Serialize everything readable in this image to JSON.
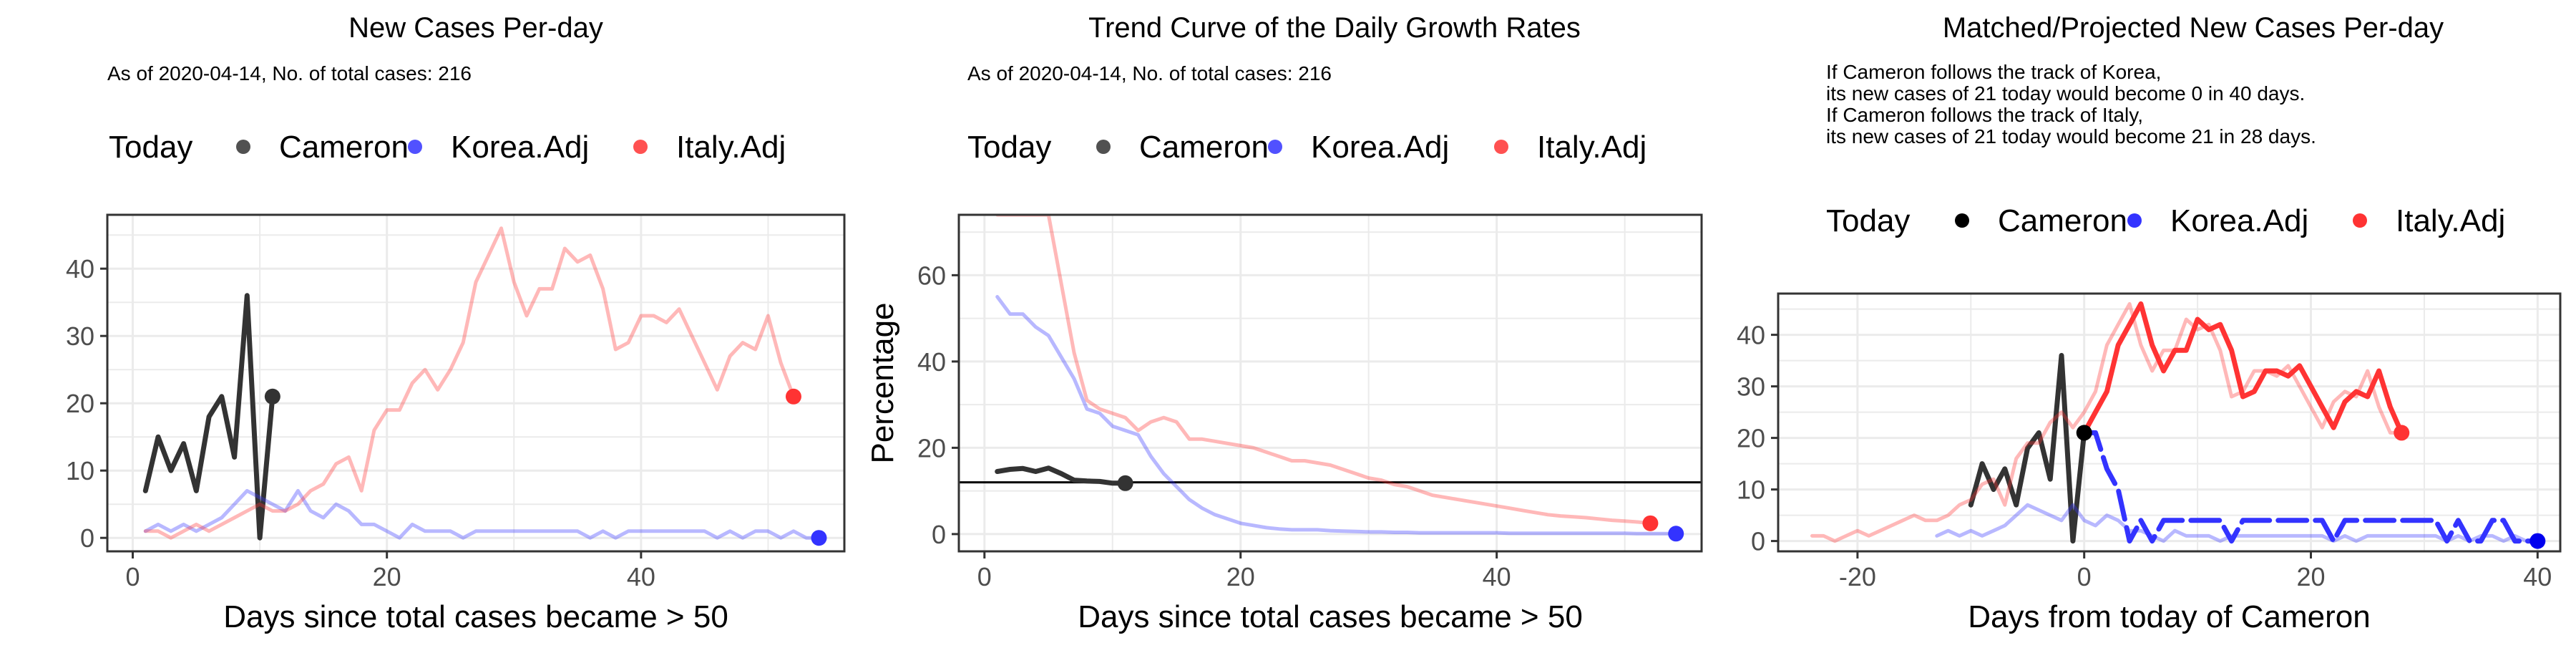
{
  "colors": {
    "today": "#000000",
    "cameron": "#333333",
    "korea": "#3333ff",
    "italy": "#ff3333",
    "grid": "#ebebeb"
  },
  "chart_data": [
    {
      "type": "line",
      "title": "New Cases Per-day",
      "subtitle": [
        "As of 2020-04-14, No. of total cases: 216"
      ],
      "xlabel": "Days since total cases became > 50",
      "ylabel": "",
      "xlim": [
        -2,
        56
      ],
      "ylim": [
        -2,
        48
      ],
      "xticks": [
        0,
        20,
        40
      ],
      "yticks": [
        0,
        10,
        20,
        30,
        40
      ],
      "legend": {
        "placement": "top",
        "entries": [
          "Today",
          "Cameron",
          "Korea.Adj",
          "Italy.Adj"
        ]
      },
      "grid": true,
      "series": [
        {
          "name": "Cameron",
          "x": [
            1,
            2,
            3,
            4,
            5,
            6,
            7,
            8,
            9,
            10,
            11
          ],
          "y": [
            7,
            15,
            10,
            14,
            7,
            18,
            21,
            12,
            36,
            0,
            21
          ]
        },
        {
          "name": "Korea.Adj",
          "x": [
            1,
            2,
            3,
            4,
            5,
            6,
            7,
            8,
            9,
            10,
            11,
            12,
            13,
            14,
            15,
            16,
            17,
            18,
            19,
            20,
            21,
            22,
            23,
            24,
            25,
            26,
            27,
            28,
            29,
            30,
            31,
            32,
            33,
            34,
            35,
            36,
            37,
            38,
            39,
            40,
            41,
            42,
            43,
            44,
            45,
            46,
            47,
            48,
            49,
            50,
            51,
            52,
            53,
            54
          ],
          "y": [
            1,
            2,
            1,
            2,
            1,
            2,
            3,
            5,
            7,
            6,
            5,
            4,
            7,
            4,
            3,
            5,
            4,
            2,
            2,
            1,
            0,
            2,
            1,
            1,
            1,
            0,
            1,
            1,
            1,
            1,
            1,
            1,
            1,
            1,
            1,
            0,
            1,
            0,
            1,
            1,
            1,
            1,
            1,
            1,
            1,
            0,
            1,
            0,
            1,
            1,
            0,
            1,
            0,
            0
          ]
        },
        {
          "name": "Italy.Adj",
          "x": [
            1,
            2,
            3,
            4,
            5,
            6,
            7,
            8,
            9,
            10,
            11,
            12,
            13,
            14,
            15,
            16,
            17,
            18,
            19,
            20,
            21,
            22,
            23,
            24,
            25,
            26,
            27,
            28,
            29,
            30,
            31,
            32,
            33,
            34,
            35,
            36,
            37,
            38,
            39,
            40,
            41,
            42,
            43,
            44,
            45,
            46,
            47,
            48,
            49,
            50,
            51,
            52
          ],
          "y": [
            1,
            1,
            0,
            1,
            2,
            1,
            2,
            3,
            4,
            5,
            4,
            4,
            5,
            7,
            8,
            11,
            12,
            7,
            16,
            19,
            19,
            23,
            25,
            22,
            25,
            29,
            38,
            42,
            46,
            38,
            33,
            37,
            37,
            43,
            41,
            42,
            37,
            28,
            29,
            33,
            33,
            32,
            34,
            30,
            26,
            22,
            27,
            29,
            28,
            33,
            26,
            21
          ]
        }
      ],
      "today_points": [
        {
          "series": "Cameron",
          "x": 11,
          "y": 21
        },
        {
          "series": "Korea.Adj",
          "x": 54,
          "y": 0
        },
        {
          "series": "Italy.Adj",
          "x": 52,
          "y": 21
        }
      ]
    },
    {
      "type": "line",
      "title": "Trend Curve of the Daily Growth Rates",
      "subtitle": [
        "As of 2020-04-14, No. of total cases: 216"
      ],
      "xlabel": "Days since total cases became > 50",
      "ylabel": "Percentage",
      "xlim": [
        -2,
        56
      ],
      "ylim": [
        -4,
        74
      ],
      "xticks": [
        0,
        20,
        40
      ],
      "yticks": [
        0,
        20,
        40,
        60
      ],
      "hline": 12,
      "legend": {
        "placement": "top",
        "entries": [
          "Today",
          "Cameron",
          "Korea.Adj",
          "Italy.Adj"
        ]
      },
      "grid": true,
      "series": [
        {
          "name": "Cameron",
          "x": [
            1,
            2,
            3,
            4,
            5,
            6,
            7,
            8,
            9,
            10,
            11
          ],
          "y": [
            14.5,
            15,
            15.2,
            14.5,
            15.3,
            14,
            12.5,
            12.3,
            12.2,
            11.8,
            11.8
          ]
        },
        {
          "name": "Korea.Adj",
          "x": [
            1,
            2,
            3,
            4,
            5,
            6,
            7,
            8,
            9,
            10,
            11,
            12,
            13,
            14,
            15,
            16,
            17,
            18,
            19,
            20,
            21,
            22,
            23,
            24,
            25,
            26,
            27,
            28,
            29,
            30,
            31,
            32,
            33,
            34,
            35,
            36,
            37,
            38,
            39,
            40,
            41,
            42,
            43,
            44,
            45,
            46,
            47,
            48,
            49,
            50,
            51,
            52,
            53,
            54
          ],
          "y": [
            55,
            51,
            51,
            48,
            46,
            41,
            36,
            29,
            28,
            25,
            24,
            23,
            18,
            14,
            11,
            8,
            6,
            4.5,
            3.5,
            2.5,
            2,
            1.5,
            1.2,
            1,
            1,
            1,
            0.8,
            0.7,
            0.6,
            0.5,
            0.5,
            0.4,
            0.4,
            0.3,
            0.3,
            0.3,
            0.3,
            0.3,
            0.3,
            0.3,
            0.2,
            0.2,
            0.2,
            0.2,
            0.2,
            0.2,
            0.2,
            0.2,
            0.2,
            0.2,
            0.1,
            0.1,
            0.1,
            0.1
          ]
        },
        {
          "name": "Italy.Adj",
          "x": [
            1,
            2,
            3,
            4,
            5,
            6,
            7,
            8,
            9,
            10,
            11,
            12,
            13,
            14,
            15,
            16,
            17,
            18,
            19,
            20,
            21,
            22,
            23,
            24,
            25,
            26,
            27,
            28,
            29,
            30,
            31,
            32,
            33,
            34,
            35,
            36,
            37,
            38,
            39,
            40,
            41,
            42,
            43,
            44,
            45,
            46,
            47,
            48,
            49,
            50,
            51,
            52
          ],
          "y": [
            74,
            74,
            74,
            74,
            74,
            58,
            42,
            31,
            29,
            28,
            27,
            24,
            26,
            27,
            26,
            22,
            22,
            21.5,
            21,
            20.5,
            20,
            19,
            18,
            17,
            17,
            16.5,
            16,
            15,
            14,
            13,
            12.5,
            11.5,
            11,
            10,
            9,
            8.5,
            8,
            7.5,
            7,
            6.5,
            6,
            5.5,
            5,
            4.5,
            4.2,
            4,
            3.8,
            3.5,
            3.2,
            3,
            2.8,
            2.5
          ]
        }
      ],
      "today_points": [
        {
          "series": "Cameron",
          "x": 11,
          "y": 11.8
        },
        {
          "series": "Korea.Adj",
          "x": 54,
          "y": 0.1
        },
        {
          "series": "Italy.Adj",
          "x": 52,
          "y": 2.5
        }
      ]
    },
    {
      "type": "line",
      "title": "Matched/Projected New Cases Per-day",
      "subtitle": [
        "If Cameron follows the track of Korea,",
        "its new cases of 21 today would become 0 in 40 days.",
        "If Cameron follows the track of Italy,",
        "its new cases of 21 today would become 21 in 28 days."
      ],
      "xlabel": "Days from today of Cameron",
      "ylabel": "",
      "xlim": [
        -27,
        42
      ],
      "ylim": [
        -2,
        48
      ],
      "xticks": [
        -20,
        0,
        20,
        40
      ],
      "yticks": [
        0,
        10,
        20,
        30,
        40
      ],
      "legend": {
        "placement": "top",
        "entries": [
          "Today",
          "Cameron",
          "Korea.Adj",
          "Italy.Adj"
        ]
      },
      "grid": true,
      "series": [
        {
          "name": "Cameron",
          "x": [
            -10,
            -9,
            -8,
            -7,
            -6,
            -5,
            -4,
            -3,
            -2,
            -1,
            0
          ],
          "y": [
            7,
            15,
            10,
            14,
            7,
            18,
            21,
            12,
            36,
            0,
            21
          ]
        },
        {
          "name": "Korea.Adj (matched)",
          "x": [
            -13,
            -12,
            -11,
            -10,
            -9,
            -8,
            -7,
            -6,
            -5,
            -4,
            -3,
            -2,
            -1,
            0,
            1,
            2,
            3,
            4,
            5,
            6,
            7,
            8,
            9,
            10,
            11,
            12,
            13,
            14,
            15,
            16,
            17,
            18,
            19,
            20,
            21,
            22,
            23,
            24,
            25,
            26,
            27,
            28,
            29,
            30,
            31,
            32,
            33,
            34,
            35,
            36,
            37,
            38,
            39,
            40
          ],
          "y": [
            1,
            2,
            1,
            2,
            1,
            2,
            3,
            5,
            7,
            6,
            5,
            4,
            7,
            4,
            3,
            5,
            4,
            2,
            2,
            1,
            0,
            2,
            1,
            1,
            1,
            0,
            1,
            1,
            1,
            1,
            1,
            1,
            1,
            1,
            1,
            0,
            1,
            0,
            1,
            1,
            1,
            1,
            1,
            1,
            1,
            0,
            1,
            0,
            1,
            1,
            0,
            1,
            0,
            0
          ]
        },
        {
          "name": "Korea.Adj (projected)",
          "x": [
            0,
            1,
            2,
            3,
            4,
            5,
            6,
            7,
            8,
            9,
            10,
            11,
            12,
            13,
            14,
            15,
            16,
            17,
            18,
            19,
            20,
            21,
            22,
            23,
            24,
            25,
            26,
            27,
            28,
            29,
            30,
            31,
            32,
            33,
            34,
            35,
            36,
            37,
            38,
            39,
            40
          ],
          "y": [
            21,
            21,
            14,
            10,
            0,
            4,
            0,
            4,
            4,
            4,
            4,
            4,
            4,
            0,
            4,
            4,
            4,
            4,
            4,
            4,
            4,
            4,
            0,
            4,
            4,
            4,
            4,
            4,
            4,
            4,
            4,
            4,
            0,
            4,
            0,
            0,
            4,
            4,
            0,
            0,
            0
          ]
        },
        {
          "name": "Italy.Adj (matched)",
          "x": [
            -24,
            -23,
            -22,
            -21,
            -20,
            -19,
            -18,
            -17,
            -16,
            -15,
            -14,
            -13,
            -12,
            -11,
            -10,
            -9,
            -8,
            -7,
            -6,
            -5,
            -4,
            -3,
            -2,
            -1,
            0,
            1,
            2,
            3,
            4,
            5,
            6,
            7,
            8,
            9,
            10,
            11,
            12,
            13,
            14,
            15,
            16,
            17,
            18,
            19,
            20,
            21,
            22,
            23,
            24,
            25,
            26,
            27,
            28
          ],
          "y": [
            1,
            1,
            0,
            1,
            2,
            1,
            2,
            3,
            4,
            5,
            4,
            4,
            5,
            7,
            8,
            11,
            12,
            7,
            16,
            19,
            19,
            23,
            25,
            22,
            25,
            29,
            38,
            42,
            46,
            38,
            33,
            37,
            37,
            43,
            41,
            42,
            37,
            28,
            29,
            33,
            33,
            32,
            34,
            30,
            26,
            22,
            27,
            29,
            28,
            33,
            26,
            21,
            21
          ]
        },
        {
          "name": "Italy.Adj (projected)",
          "x": [
            0,
            1,
            2,
            3,
            4,
            5,
            6,
            7,
            8,
            9,
            10,
            11,
            12,
            13,
            14,
            15,
            16,
            17,
            18,
            19,
            20,
            21,
            22,
            23,
            24,
            25,
            26,
            27,
            28
          ],
          "y": [
            21,
            25,
            29,
            38,
            42,
            46,
            38,
            33,
            37,
            37,
            43,
            41,
            42,
            37,
            28,
            29,
            33,
            33,
            32,
            34,
            30,
            26,
            22,
            27,
            29,
            28,
            33,
            26,
            21
          ]
        }
      ],
      "today_points": [
        {
          "series": "Cameron",
          "x": 0,
          "y": 21
        },
        {
          "series": "Korea.Adj",
          "x": 40,
          "y": 0
        },
        {
          "series": "Italy.Adj",
          "x": 28,
          "y": 21
        }
      ]
    }
  ]
}
